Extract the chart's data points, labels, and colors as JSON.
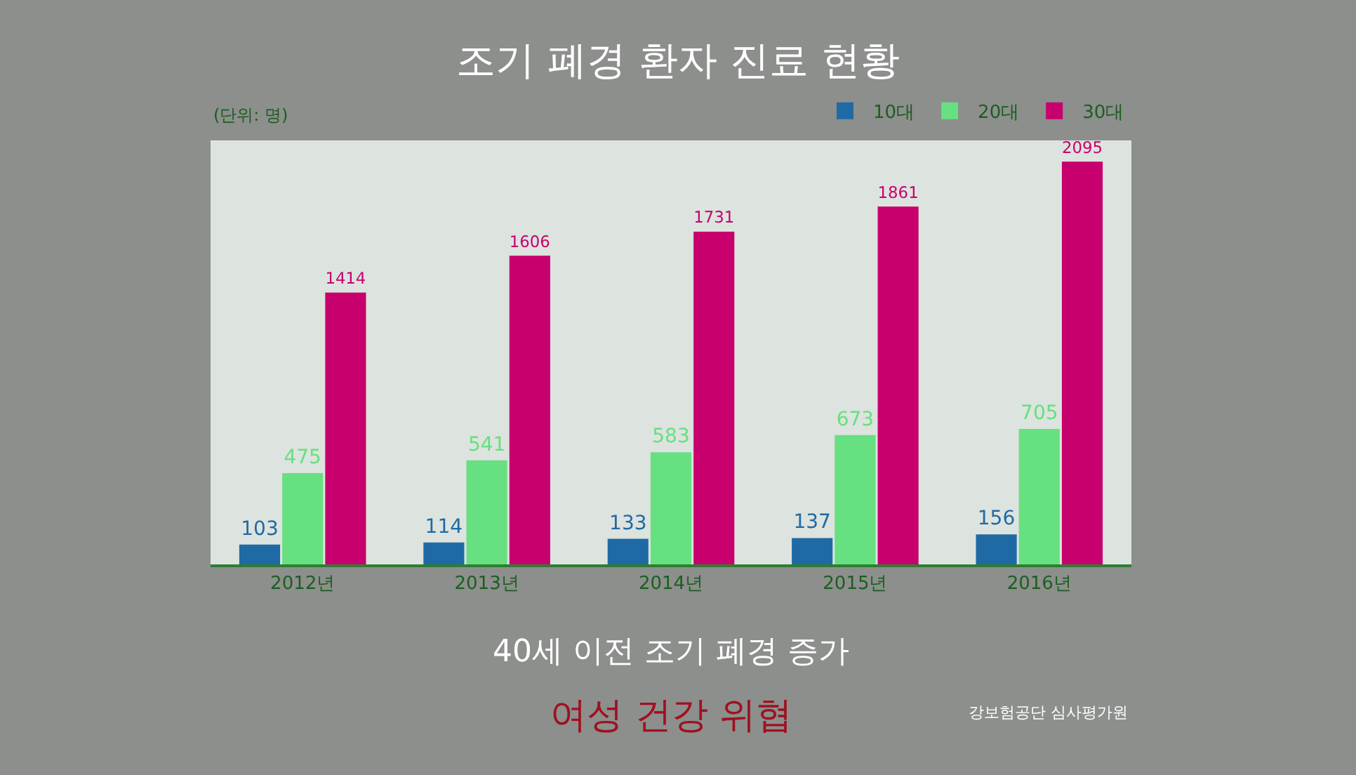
{
  "chart_data": {
    "type": "bar",
    "title": "조기 폐경 환자 진료 현황",
    "categories": [
      "2012년",
      "2013년",
      "2014년",
      "2015년",
      "2016년"
    ],
    "series": [
      {
        "name": "10대",
        "color": "#1f6aa5",
        "values": [
          103,
          114,
          133,
          137,
          156
        ]
      },
      {
        "name": "20대",
        "color": "#66e080",
        "values": [
          475,
          541,
          583,
          673,
          705
        ]
      },
      {
        "name": "30대",
        "color": "#c8006e",
        "values": [
          1414,
          1606,
          1731,
          1861,
          2095
        ]
      }
    ],
    "data_labels": true,
    "tick_labels": "x",
    "legend": "top right",
    "annotations": [
      "(단위: 명)",
      "40세 이전 조기 폐경 증가",
      "여성 건강 위협",
      "강보험공단 심사평가원"
    ]
  }
}
